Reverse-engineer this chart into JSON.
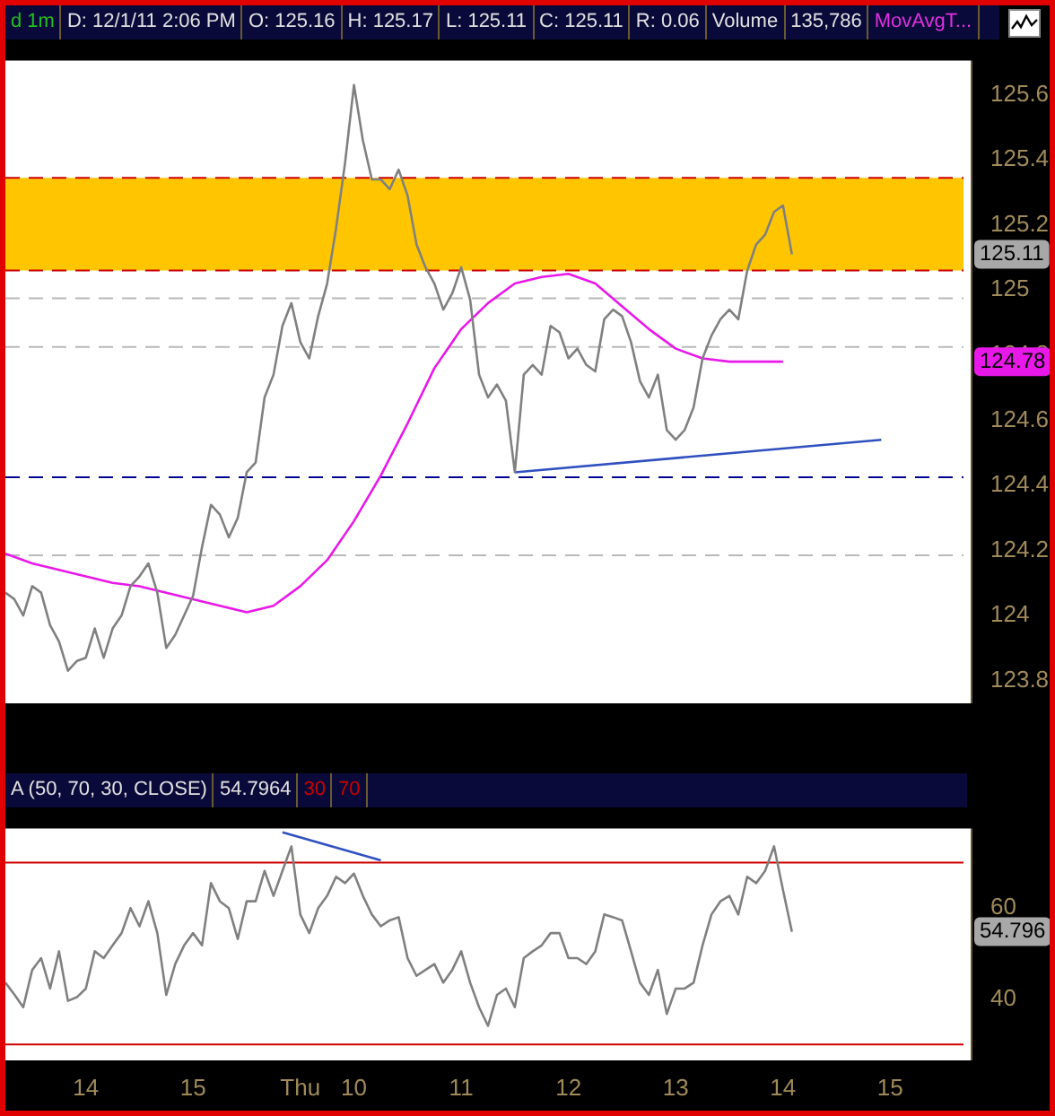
{
  "chart_data": [
    {
      "type": "line",
      "annotations": [
        "d 1m",
        "D: 12/1/11 2:06 PM",
        "O: 125.16",
        "H: 125.17",
        "L: 125.11",
        "C: 125.11",
        "R: 0.06",
        "Volume",
        "135,786",
        "MovAvgT...",
        "125.11",
        "124.78"
      ],
      "categories": [
        null,
        null,
        null,
        null,
        null,
        null,
        null,
        null,
        null,
        null,
        null,
        null,
        null,
        null,
        null,
        null,
        null,
        null,
        null,
        null,
        null,
        null,
        null,
        null,
        null,
        null,
        null,
        null,
        null,
        null,
        null,
        null,
        null,
        null,
        null,
        null,
        null,
        null,
        null,
        null,
        null,
        null,
        null,
        null,
        null,
        null,
        null,
        null,
        null,
        null,
        null,
        null,
        null,
        null,
        null,
        null,
        null,
        null,
        null,
        null,
        null,
        null,
        null,
        null,
        null,
        null,
        null,
        null,
        null,
        null,
        null,
        null,
        null,
        null,
        null,
        null,
        null,
        null,
        null,
        null,
        null,
        null,
        null,
        null,
        null,
        null,
        null,
        null,
        null,
        null,
        null,
        null,
        null,
        null,
        null,
        null,
        null,
        null,
        null,
        null,
        null,
        null,
        null,
        null,
        null,
        null,
        null,
        null,
        null
      ],
      "series": [
        {
          "color": "#808080",
          "values": [
            124.07,
            124.05,
            124.0,
            124.09,
            124.07,
            123.97,
            123.92,
            123.83,
            123.86,
            123.87,
            123.96,
            123.87,
            123.96,
            124.0,
            124.09,
            124.12,
            124.16,
            124.07,
            123.9,
            123.94,
            124.0,
            124.06,
            124.21,
            124.34,
            124.31,
            124.24,
            124.3,
            124.44,
            124.47,
            124.67,
            124.74,
            124.89,
            124.96,
            124.84,
            124.79,
            124.92,
            125.02,
            125.19,
            125.39,
            125.63,
            125.46,
            125.34,
            125.34,
            125.31,
            125.37,
            125.29,
            125.14,
            125.07,
            125.02,
            124.94,
            124.99,
            125.07,
            124.97,
            124.74,
            124.67,
            124.71,
            124.66,
            124.44,
            124.74,
            124.77,
            124.74,
            124.89,
            124.87,
            124.79,
            124.82,
            124.77,
            124.75,
            124.91,
            124.94,
            124.92,
            124.84,
            124.72,
            124.67,
            124.74,
            124.57,
            124.54,
            124.57,
            124.64,
            124.79,
            124.86,
            124.91,
            124.94,
            124.91,
            125.06,
            125.14,
            125.17,
            125.24,
            125.26,
            125.11,
            null,
            null,
            null,
            null,
            null,
            null,
            null,
            null,
            null,
            null,
            null,
            null,
            null,
            null,
            null,
            null,
            null,
            null,
            null,
            null
          ]
        },
        {
          "color": "#e818e8",
          "values": [
            124.19,
            null,
            null,
            124.16,
            null,
            null,
            124.14,
            null,
            null,
            124.12,
            null,
            null,
            124.1,
            null,
            null,
            124.09,
            null,
            null,
            124.07,
            null,
            null,
            124.05,
            null,
            null,
            124.03,
            null,
            null,
            124.01,
            null,
            null,
            124.03,
            null,
            null,
            124.09,
            null,
            null,
            124.17,
            null,
            null,
            124.29,
            null,
            null,
            124.43,
            null,
            null,
            124.59,
            null,
            null,
            124.76,
            null,
            null,
            124.88,
            null,
            null,
            124.96,
            null,
            null,
            125.02,
            null,
            null,
            125.04,
            null,
            null,
            125.05,
            null,
            null,
            125.02,
            null,
            null,
            124.95,
            null,
            null,
            124.88,
            null,
            null,
            124.82,
            null,
            null,
            124.79,
            null,
            null,
            124.78,
            null,
            null,
            124.78,
            null,
            null,
            124.78,
            null,
            null,
            null,
            null,
            null,
            null,
            null,
            null,
            null,
            null,
            null,
            null,
            null,
            null,
            null,
            null,
            null,
            null,
            null,
            null,
            null
          ]
        },
        {
          "color": "#3050c0",
          "values": [
            null,
            null,
            null,
            null,
            null,
            null,
            null,
            null,
            null,
            null,
            null,
            null,
            null,
            null,
            null,
            null,
            null,
            null,
            null,
            null,
            null,
            null,
            null,
            null,
            null,
            null,
            null,
            null,
            null,
            null,
            null,
            null,
            null,
            null,
            null,
            null,
            null,
            null,
            null,
            null,
            null,
            null,
            null,
            null,
            null,
            null,
            null,
            null,
            null,
            null,
            null,
            null,
            null,
            null,
            null,
            null,
            null,
            124.44,
            null,
            null,
            null,
            null,
            null,
            null,
            null,
            null,
            null,
            null,
            null,
            null,
            null,
            null,
            null,
            null,
            null,
            null,
            null,
            null,
            null,
            null,
            null,
            null,
            null,
            null,
            null,
            null,
            null,
            null,
            null,
            null,
            null,
            null,
            null,
            null,
            null,
            null,
            null,
            null,
            124.54,
            null,
            null,
            null,
            null,
            null,
            null,
            null,
            null,
            null,
            null
          ]
        }
      ],
      "ylim": [
        123.73,
        125.705
      ],
      "yticks": [
        123.8,
        124,
        124.2,
        124.4,
        124.6,
        124.8,
        125,
        125.2,
        125.4,
        125.6
      ],
      "bands": [
        {
          "axis": "y",
          "from": 125.06,
          "to": 125.345,
          "color": "#ffc600"
        }
      ],
      "ref_lines": [
        {
          "axis": "y",
          "value": 125.345,
          "color": "#cc0000",
          "line_style": "dashed"
        },
        {
          "axis": "y",
          "value": 125.06,
          "color": "#cc0000",
          "line_style": "dashed"
        },
        {
          "axis": "y",
          "value": 124.975,
          "color": "#b8b8b8",
          "line_style": "dashed"
        },
        {
          "axis": "y",
          "value": 124.825,
          "color": "#b8b8b8",
          "line_style": "dashed"
        },
        {
          "axis": "y",
          "value": 124.425,
          "color": "#000090",
          "line_style": "dashed"
        },
        {
          "axis": "y",
          "value": 124.185,
          "color": "#b8b8b8",
          "line_style": "dashed"
        }
      ],
      "tick_labels": "y",
      "marker": "none",
      "line_style": "solid"
    },
    {
      "type": "line",
      "annotations": [
        "A (50, 70, 30, CLOSE)",
        "54.7964",
        "54.796"
      ],
      "categories": [
        null,
        null,
        null,
        null,
        null,
        null,
        null,
        null,
        null,
        "14",
        null,
        null,
        null,
        null,
        null,
        null,
        null,
        null,
        null,
        null,
        null,
        "15",
        null,
        null,
        null,
        null,
        null,
        null,
        null,
        null,
        null,
        null,
        null,
        "Thu",
        null,
        null,
        null,
        null,
        null,
        "10",
        null,
        null,
        null,
        null,
        null,
        null,
        null,
        null,
        null,
        null,
        null,
        "11",
        null,
        null,
        null,
        null,
        null,
        null,
        null,
        null,
        null,
        null,
        null,
        "12",
        null,
        null,
        null,
        null,
        null,
        null,
        null,
        null,
        null,
        null,
        null,
        "13",
        null,
        null,
        null,
        null,
        null,
        null,
        null,
        null,
        null,
        null,
        null,
        "14",
        null,
        null,
        null,
        null,
        null,
        null,
        null,
        null,
        null,
        null,
        null,
        "15",
        null,
        null,
        null,
        null,
        null,
        null,
        null,
        null,
        null
      ],
      "series": [
        {
          "color": "#808080",
          "values": [
            43.6,
            41,
            38.2,
            46.4,
            49,
            42.3,
            50.5,
            39.6,
            40.4,
            42.3,
            50.5,
            49,
            51.8,
            54.5,
            60,
            56,
            61.5,
            54.5,
            40.9,
            47.7,
            51.8,
            54.5,
            51.8,
            65.5,
            61.5,
            60,
            53.2,
            61.5,
            61.5,
            68.2,
            62.7,
            68.2,
            73.6,
            58.6,
            54.5,
            60,
            62.7,
            66.9,
            65.5,
            67.6,
            62.7,
            58.6,
            56,
            57.3,
            58,
            49,
            45.1,
            46.4,
            47.7,
            43.6,
            46.4,
            50.5,
            43.6,
            38.2,
            34.1,
            40.9,
            42.3,
            38.2,
            49,
            50.5,
            51.8,
            54.5,
            54.5,
            49,
            49,
            47.7,
            50.5,
            58.6,
            58,
            57.3,
            50.5,
            43.6,
            40.9,
            46.4,
            36.7,
            42.3,
            42.3,
            43.6,
            51.8,
            58.6,
            61.5,
            62.7,
            58.6,
            66.9,
            65.5,
            68.2,
            73.6,
            64,
            54.8,
            null,
            null,
            null,
            null,
            null,
            null,
            null,
            null,
            null,
            null,
            null,
            null,
            null,
            null,
            null,
            null,
            null,
            null,
            null,
            null
          ]
        },
        {
          "color": "#3050c0",
          "values": [
            null,
            null,
            null,
            null,
            null,
            null,
            null,
            null,
            null,
            null,
            null,
            null,
            null,
            null,
            null,
            null,
            null,
            null,
            null,
            null,
            null,
            null,
            null,
            null,
            null,
            null,
            null,
            null,
            null,
            null,
            null,
            76.7,
            null,
            null,
            null,
            null,
            null,
            null,
            null,
            null,
            null,
            null,
            70.5,
            null,
            null,
            null,
            null,
            null,
            null,
            null,
            null,
            null,
            null,
            null,
            null,
            null,
            null,
            null,
            null,
            null,
            null,
            null,
            null,
            null,
            null,
            null,
            null,
            null,
            null,
            null,
            null,
            null,
            null,
            null,
            null,
            null,
            null,
            null,
            null,
            null,
            null,
            null,
            null,
            null,
            null,
            null,
            null,
            null,
            null,
            null,
            null,
            null,
            null,
            null,
            null,
            null,
            null,
            null,
            null,
            null,
            null,
            null,
            null,
            null,
            null,
            null,
            null,
            null,
            null
          ]
        }
      ],
      "ylim": [
        26.5,
        77.5
      ],
      "yticks": [
        40,
        60
      ],
      "ref_lines": [
        {
          "axis": "y",
          "value": 30,
          "label": "30",
          "color": "#cc0000"
        },
        {
          "axis": "y",
          "value": 70,
          "label": "70",
          "color": "#cc0000"
        }
      ],
      "marker": "none",
      "line_style": "solid"
    }
  ]
}
